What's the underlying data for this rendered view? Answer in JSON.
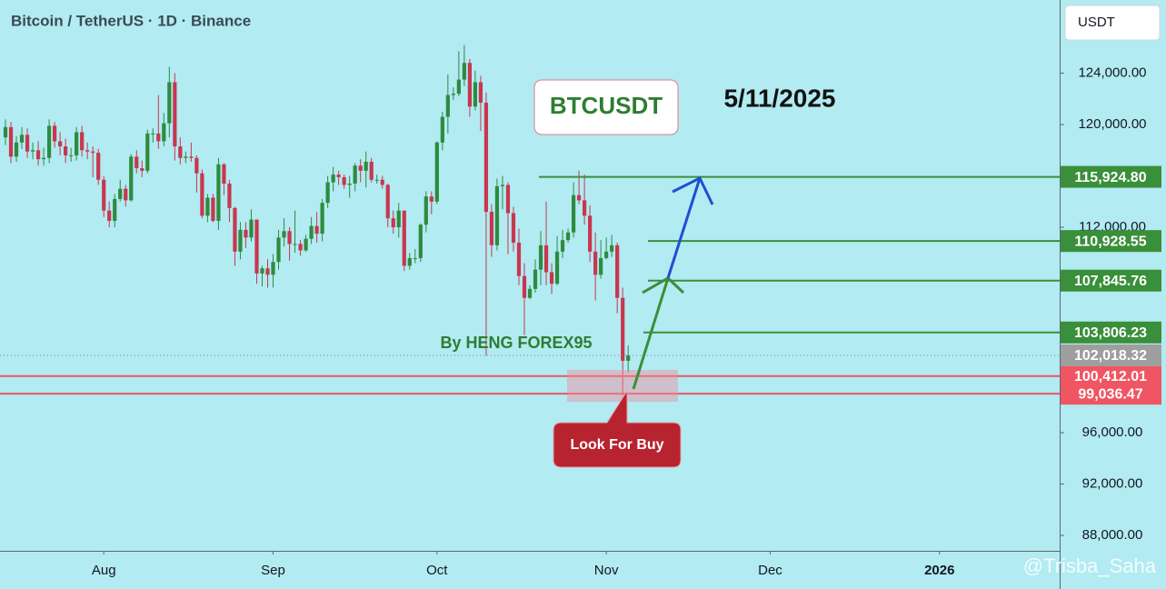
{
  "chart_data": {
    "type": "candlestick",
    "title": "Bitcoin / TetherUS · 1D · Binance",
    "currency": "USDT",
    "symbol": "BTCUSDT",
    "date": "5/11/2025",
    "author": "By HENG FOREX95",
    "callout": "Look For Buy",
    "watermark": "@Trisba_Saha",
    "up_color": "#2e8b3e",
    "down_color": "#c8374f",
    "grid": false,
    "xlim": [
      194,
      388
    ],
    "xticks": [
      {
        "value": 213,
        "label": "Aug"
      },
      {
        "value": 244,
        "label": "Sep"
      },
      {
        "value": 274,
        "label": "Oct"
      },
      {
        "value": 305,
        "label": "Nov"
      },
      {
        "value": 335,
        "label": "Dec"
      },
      {
        "value": 366,
        "label": "2026"
      }
    ],
    "ylim": [
      86800,
      129700
    ],
    "yticks": [
      {
        "value": 88000,
        "label": "88,000.00"
      },
      {
        "value": 92000,
        "label": "92,000.00"
      },
      {
        "value": 96000,
        "label": "96,000.00"
      },
      {
        "value": 112000,
        "label": "112,000.00"
      },
      {
        "value": 120000,
        "label": "120,000.00"
      },
      {
        "value": 124000,
        "label": "124,000.00"
      }
    ],
    "levels": [
      {
        "value": 115924.8,
        "label": "115,924.80",
        "color": "#3a8f3a"
      },
      {
        "value": 110928.55,
        "label": "110,928.55",
        "color": "#3a8f3a"
      },
      {
        "value": 107845.76,
        "label": "107,845.76",
        "color": "#3a8f3a"
      },
      {
        "value": 103806.23,
        "label": "103,806.23",
        "color": "#3a8f3a"
      },
      {
        "value": 100412.01,
        "label": "100,412.01",
        "color": "#f05563"
      },
      {
        "value": 99036.47,
        "label": "99,036.47",
        "color": "#f05563"
      }
    ],
    "last_price": {
      "value": 102018.32,
      "label": "102,018.32",
      "color": "#9e9e9e"
    },
    "x": [
      195,
      196,
      197,
      198,
      199,
      200,
      201,
      202,
      203,
      204,
      205,
      206,
      207,
      208,
      209,
      210,
      211,
      212,
      213,
      214,
      215,
      216,
      217,
      218,
      219,
      220,
      221,
      222,
      223,
      224,
      225,
      226,
      227,
      228,
      229,
      230,
      231,
      232,
      233,
      234,
      235,
      236,
      237,
      238,
      239,
      240,
      241,
      242,
      243,
      244,
      245,
      246,
      247,
      248,
      249,
      250,
      251,
      252,
      253,
      254,
      255,
      256,
      257,
      258,
      259,
      260,
      261,
      262,
      263,
      264,
      265,
      266,
      267,
      268,
      269,
      270,
      271,
      272,
      273,
      274,
      275,
      276,
      277,
      278,
      279,
      280,
      281,
      282,
      283,
      284,
      285,
      286,
      287,
      288,
      289,
      290,
      291,
      292,
      293,
      294,
      295,
      296,
      297,
      298,
      299,
      300,
      301,
      302,
      303,
      304,
      305,
      306,
      307,
      308,
      309
    ],
    "open": [
      119000,
      119800,
      117500,
      118600,
      119200,
      117900,
      118000,
      117300,
      117400,
      119900,
      118700,
      118300,
      117600,
      117600,
      119400,
      118000,
      117900,
      117800,
      115700,
      113300,
      112500,
      114200,
      115000,
      114100,
      117500,
      116600,
      116400,
      119300,
      119300,
      118700,
      120100,
      123300,
      118300,
      117400,
      117500,
      117400,
      116200,
      112900,
      114300,
      112500,
      116900,
      115400,
      113500,
      110100,
      111800,
      111200,
      112600,
      108400,
      108800,
      108300,
      109300,
      111200,
      111700,
      110700,
      110700,
      110200,
      111100,
      112100,
      111500,
      113900,
      115500,
      116100,
      115900,
      115300,
      115400,
      116800,
      116400,
      117100,
      115700,
      115700,
      115300,
      112700,
      112000,
      113300,
      109000,
      109600,
      109600,
      112200,
      114400,
      114000,
      118600,
      120600,
      122300,
      122400,
      123500,
      124800,
      121400,
      123300,
      121700,
      113200,
      110600,
      115200,
      115300,
      113100,
      110800,
      108200,
      106500,
      107200,
      108700,
      110600,
      108500,
      107600,
      110100,
      111000,
      111600,
      114500,
      114100,
      112900,
      110100,
      108300,
      109600,
      110100,
      110600,
      106500,
      101600
    ],
    "high": [
      120400,
      120200,
      119100,
      119800,
      119700,
      118600,
      118700,
      118200,
      120400,
      120200,
      119400,
      118900,
      118200,
      119800,
      119900,
      118600,
      118300,
      118100,
      116000,
      114000,
      114600,
      115700,
      115300,
      117700,
      118000,
      117200,
      119600,
      119700,
      122300,
      120900,
      124500,
      124000,
      119000,
      117900,
      118600,
      117600,
      116500,
      114600,
      114600,
      117400,
      117000,
      115700,
      113600,
      112400,
      112400,
      113400,
      112600,
      109000,
      109500,
      109900,
      111800,
      112700,
      112000,
      113300,
      111000,
      111400,
      112800,
      113200,
      114200,
      116000,
      116700,
      116400,
      116100,
      116000,
      117000,
      117300,
      117900,
      117400,
      116100,
      116000,
      115400,
      113300,
      113900,
      113300,
      110000,
      110300,
      112300,
      114800,
      114800,
      118700,
      121000,
      123900,
      122900,
      125700,
      126200,
      125100,
      124200,
      123800,
      122500,
      113800,
      115800,
      116000,
      115500,
      113600,
      111900,
      109200,
      107500,
      109500,
      111700,
      114000,
      109200,
      111300,
      111800,
      111900,
      115500,
      116400,
      116100,
      113700,
      111600,
      111000,
      111200,
      111400,
      110800,
      107300,
      102800
    ],
    "low": [
      118400,
      117000,
      117100,
      118100,
      117400,
      117300,
      116800,
      116800,
      117000,
      118200,
      117600,
      117000,
      117100,
      117200,
      117500,
      117300,
      115900,
      115300,
      112800,
      112000,
      112000,
      114000,
      113600,
      114000,
      116200,
      115900,
      116200,
      118600,
      118100,
      118300,
      119000,
      117200,
      116900,
      117000,
      117100,
      114700,
      112700,
      112400,
      112400,
      111800,
      114500,
      112400,
      109000,
      109500,
      110400,
      110900,
      107600,
      107400,
      107300,
      107300,
      108700,
      110500,
      109400,
      110000,
      109800,
      110100,
      110700,
      110800,
      110900,
      113500,
      114800,
      115300,
      115000,
      114300,
      114800,
      115500,
      115100,
      115500,
      115400,
      115000,
      112000,
      111500,
      111200,
      108600,
      108700,
      109200,
      109300,
      111600,
      113000,
      113800,
      118000,
      119300,
      121900,
      122200,
      123000,
      120600,
      121100,
      119500,
      102000,
      109700,
      110200,
      113400,
      109900,
      110100,
      107500,
      103600,
      106400,
      106900,
      107500,
      107500,
      106800,
      107500,
      109600,
      110800,
      111200,
      113800,
      112200,
      109300,
      106300,
      108000,
      109500,
      109700,
      105300,
      98900,
      100700
    ],
    "close": [
      119800,
      117500,
      118600,
      119200,
      117900,
      118000,
      117300,
      117400,
      119900,
      118700,
      118300,
      117600,
      117600,
      119400,
      118000,
      117900,
      117800,
      115700,
      113300,
      112500,
      114200,
      115000,
      114100,
      117500,
      116600,
      116400,
      119300,
      119300,
      118700,
      120100,
      123300,
      118300,
      117400,
      117500,
      117400,
      116200,
      112900,
      114300,
      112500,
      116900,
      115400,
      113500,
      110100,
      111800,
      111200,
      112600,
      108400,
      108800,
      108300,
      109300,
      111200,
      111700,
      110700,
      110700,
      110200,
      111100,
      112100,
      111500,
      113900,
      115500,
      116100,
      115900,
      115300,
      115400,
      116800,
      116400,
      117100,
      115700,
      115700,
      115300,
      112700,
      112000,
      113300,
      109000,
      109600,
      109600,
      112200,
      114400,
      114000,
      118600,
      120600,
      122300,
      122400,
      123500,
      124800,
      121400,
      123300,
      121700,
      113200,
      110600,
      115200,
      115300,
      113100,
      110800,
      108200,
      106500,
      107200,
      108700,
      110600,
      108500,
      107600,
      110100,
      111000,
      111600,
      114500,
      114100,
      112900,
      110100,
      108300,
      109600,
      110100,
      110600,
      106500,
      101600,
      102018.32
    ]
  }
}
